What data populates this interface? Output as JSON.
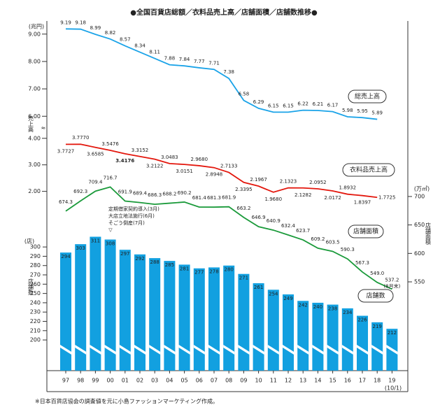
{
  "chart_data": {
    "type": "combo",
    "title": "●全国百貨店総額／衣料品売上高／店舗面積／店舗数推移●",
    "categories": [
      "97",
      "98",
      "99",
      "00",
      "01",
      "02",
      "03",
      "04",
      "05",
      "06",
      "07",
      "08",
      "09",
      "10",
      "11",
      "12",
      "13",
      "14",
      "15",
      "16",
      "17",
      "18",
      "19"
    ],
    "category_note": "(10/1)",
    "y_unit": "(兆円)",
    "y_label": "売上高",
    "y_segments": [
      {
        "ylim": [
          5.7,
          9.3
        ],
        "yticks": [
          {
            "value": 6,
            "label": "6.00"
          },
          {
            "value": 7,
            "label": "7.00"
          },
          {
            "value": 8,
            "label": "8.00"
          },
          {
            "value": 9,
            "label": "9.00"
          }
        ]
      },
      {
        "ylim": [
          1.7,
          4.1
        ],
        "yticks": [
          {
            "value": 2,
            "label": "2.00"
          },
          {
            "value": 3,
            "label": "3.00"
          },
          {
            "value": 4,
            "label": "4.00"
          }
        ]
      }
    ],
    "y2_unit": "(万㎡)",
    "y2_label": "店舗面積",
    "y2lim": [
      530,
      720
    ],
    "y2ticks": [
      550,
      600,
      650,
      700
    ],
    "y3_unit": "(店)",
    "y3_label": "店舗数",
    "y3lim": [
      170,
      305
    ],
    "y3ticks": [
      200,
      210,
      220,
      230,
      240,
      250,
      260,
      270,
      280,
      290,
      300
    ],
    "series": [
      {
        "name": "総売上高",
        "type": "line",
        "axis": "y",
        "color": "#1aa3e8",
        "values": [
          9.19,
          9.18,
          8.99,
          8.82,
          8.57,
          8.34,
          8.11,
          7.88,
          7.84,
          7.77,
          7.71,
          7.38,
          6.58,
          6.29,
          6.15,
          6.15,
          6.22,
          6.21,
          6.17,
          5.98,
          5.95,
          5.89,
          null
        ]
      },
      {
        "name": "衣料品売上高",
        "type": "line",
        "axis": "y",
        "color": "#e3170d",
        "values": [
          3.7727,
          3.777,
          3.6585,
          3.5476,
          3.4176,
          3.3152,
          3.2122,
          3.0483,
          3.0151,
          2.968,
          2.8948,
          2.7133,
          2.3395,
          2.1967,
          1.968,
          2.1323,
          2.1282,
          2.0952,
          2.0172,
          1.8932,
          1.8397,
          1.7725,
          null
        ],
        "value_labels": [
          "3.7727",
          "3.7770",
          "3.6585",
          "3.5476",
          "3.4176",
          "3.3152",
          "3.2122",
          "3.0483",
          "3.0151",
          "2.9680",
          "2.8948",
          "2.7133",
          "2.3395",
          "2.1967",
          "1.9680",
          "2.1323",
          "2.1282",
          "2.0952",
          "2.0172",
          "1.8932",
          "1.8397",
          "1.7725",
          null
        ]
      },
      {
        "name": "店舗面積",
        "type": "line",
        "axis": "y2",
        "color": "#1a9a3a",
        "values": [
          674.3,
          692.3,
          709.4,
          716.7,
          691.9,
          689.4,
          686.3,
          688.2,
          690.2,
          681.4,
          681.3,
          681.9,
          663.2,
          646.9,
          640.9,
          632.4,
          623.7,
          609.2,
          603.5,
          590.3,
          567.3,
          549,
          537.2
        ],
        "value_labels": [
          "674.3",
          "692.3",
          "709.4",
          "716.7",
          "691.9",
          "689.4",
          "686.3",
          "688.2",
          "690.2",
          "681.4",
          "681.3",
          "681.9",
          "663.2",
          "646.9",
          "640.9",
          "632.4",
          "623.7",
          "609.2",
          "603.5",
          "590.3",
          "567.3",
          "549.0",
          "537.2"
        ],
        "last_note": "(8月末)"
      },
      {
        "name": "店舗数",
        "type": "bar",
        "axis": "y3",
        "color": "#12a0e0",
        "values": [
          294,
          303,
          311,
          308,
          297,
          292,
          288,
          285,
          281,
          277,
          278,
          280,
          271,
          261,
          254,
          249,
          242,
          240,
          238,
          234,
          226,
          219,
          212
        ]
      }
    ],
    "annotation": [
      "定期借家契約導入(3月)",
      "大店立地法施行(6月)",
      "そごう倒産(7月)",
      "▽"
    ],
    "footnote": "※日本百貨店協会の調査値を元に小島ファッションマーケティング作成。"
  }
}
